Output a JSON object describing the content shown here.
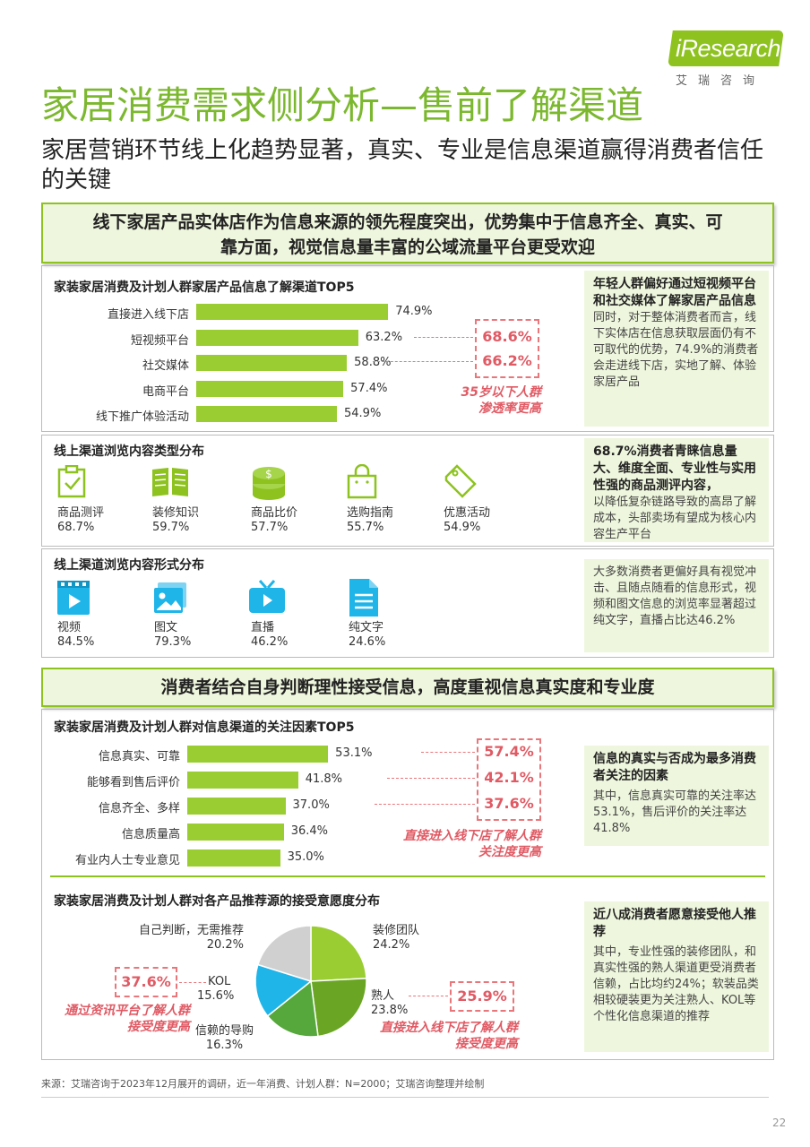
{
  "logo": {
    "main": "iResearch",
    "sub": "艾瑞咨询"
  },
  "title": "家居消费需求侧分析—售前了解渠道",
  "subtitle": "家居营销环节线上化趋势显著，真实、专业是信息渠道赢得消费者信任的关键",
  "banner1": {
    "line1": "线下家居产品实体店作为信息来源的领先程度突出，优势集中于信息齐全、真实、可",
    "line2": "靠方面，视觉信息量丰富的公域流量平台更受欢迎"
  },
  "banner2": "消费者结合自身判断理性接受信息，高度重视信息真实度和专业度",
  "channels": {
    "title": "家装家居消费及计划人群家居产品信息了解渠道TOP5",
    "highlights": [
      "68.6%",
      "66.2%"
    ],
    "note": [
      "35岁以下人群",
      "渗透率更高"
    ],
    "side_title": "年轻人群偏好通过短视频平台和社交媒体了解家居产品信息",
    "side_text": "同时，对于整体消费者而言，线下实体店在信息获取层面仍有不可取代的优势，74.9%的消费者会走进线下店，实地了解、体验家居产品"
  },
  "content_types": {
    "title": "线上渠道浏览内容类型分布",
    "items": [
      {
        "icon": "checklist-icon",
        "label": "商品测评",
        "value": "68.7%"
      },
      {
        "icon": "book-icon",
        "label": "装修知识",
        "value": "59.7%"
      },
      {
        "icon": "coins-icon",
        "label": "商品比价",
        "value": "57.7%"
      },
      {
        "icon": "shopping-bag-icon",
        "label": "选购指南",
        "value": "55.7%"
      },
      {
        "icon": "price-tag-icon",
        "label": "优惠活动",
        "value": "54.9%"
      }
    ],
    "side_title": "68.7%消费者青睐信息量大、维度全面、专业性与实用性强的商品测评内容，",
    "side_text": "以降低复杂链路导致的高昂了解成本，头部卖场有望成为核心内容生产平台"
  },
  "content_forms": {
    "title": "线上渠道浏览内容形式分布",
    "items": [
      {
        "icon": "video-icon",
        "label": "视频",
        "value": "84.5%"
      },
      {
        "icon": "image-text-icon",
        "label": "图文",
        "value": "79.3%"
      },
      {
        "icon": "live-tv-icon",
        "label": "直播",
        "value": "46.2%"
      },
      {
        "icon": "document-icon",
        "label": "纯文字",
        "value": "24.6%"
      }
    ],
    "side_text": "大多数消费者更偏好具有视觉冲击、且随点随看的信息形式，视频和图文信息的浏览率显著超过纯文字，直播占比达46.2%"
  },
  "factors": {
    "title": "家装家居消费及计划人群对信息渠道的关注因素TOP5",
    "highlights": [
      "57.4%",
      "42.1%",
      "37.6%"
    ],
    "note": [
      "直接进入线下店了解人群",
      "关注度更高"
    ],
    "side_title": "信息的真实与否成为最多消费者关注的因素",
    "side_text": "其中，信息真实可靠的关注率达53.1%，售后评价的关注率达41.8%"
  },
  "sources": {
    "title": "家装家居消费及计划人群对各产品推荐源的接受意愿度分布",
    "kol_highlight": "37.6%",
    "kol_note": [
      "通过资讯平台了解人群",
      "接受度更高"
    ],
    "acq_highlight": "25.9%",
    "acq_note": [
      "直接进入线下店了解人群",
      "接受度更高"
    ],
    "side_title": "近八成消费者愿意接受他人推荐",
    "side_text": "其中，专业性强的装修团队，和真实性强的熟人渠道更受消费者信赖，占比均约24%；软装品类相较硬装更为关注熟人、KOL等个性化信息渠道的推荐"
  },
  "source_note": "来源：艾瑞咨询于2023年12月展开的调研，近一年消费、计划人群：N=2000；艾瑞咨询整理并绘制",
  "page_number": "22",
  "colors": {
    "green": "#9acd32",
    "accent": "#7cb82f",
    "red": "#e05a64"
  },
  "chart_data": [
    {
      "type": "bar",
      "orientation": "horizontal",
      "title": "家装家居消费及计划人群家居产品信息了解渠道TOP5",
      "categories": [
        "直接进入线下店",
        "短视频平台",
        "社交媒体",
        "电商平台",
        "线下推广体验活动"
      ],
      "values": [
        74.9,
        63.2,
        58.8,
        57.4,
        54.9
      ],
      "labels": [
        "74.9%",
        "63.2%",
        "58.8%",
        "57.4%",
        "54.9%"
      ]
    },
    {
      "type": "bar",
      "orientation": "horizontal",
      "title": "家装家居消费及计划人群对信息渠道的关注因素TOP5",
      "categories": [
        "信息真实、可靠",
        "能够看到售后评价",
        "信息齐全、多样",
        "信息质量高",
        "有业内人士专业意见"
      ],
      "values": [
        53.1,
        41.8,
        37.0,
        36.4,
        35.0
      ],
      "labels": [
        "53.1%",
        "41.8%",
        "37.0%",
        "36.4%",
        "35.0%"
      ]
    },
    {
      "type": "pie",
      "title": "家装家居消费及计划人群对各产品推荐源的接受意愿度分布",
      "categories": [
        "装修团队",
        "熟人",
        "信赖的导购",
        "KOL",
        "自己判断，无需推荐"
      ],
      "values": [
        24.2,
        23.8,
        16.3,
        15.6,
        20.2
      ],
      "labels": [
        "24.2%",
        "23.8%",
        "16.3%",
        "15.6%",
        "20.2%"
      ],
      "colors": [
        "#9acd32",
        "#6aa624",
        "#56a83c",
        "#1fb5e9",
        "#d0d0d0"
      ]
    }
  ]
}
